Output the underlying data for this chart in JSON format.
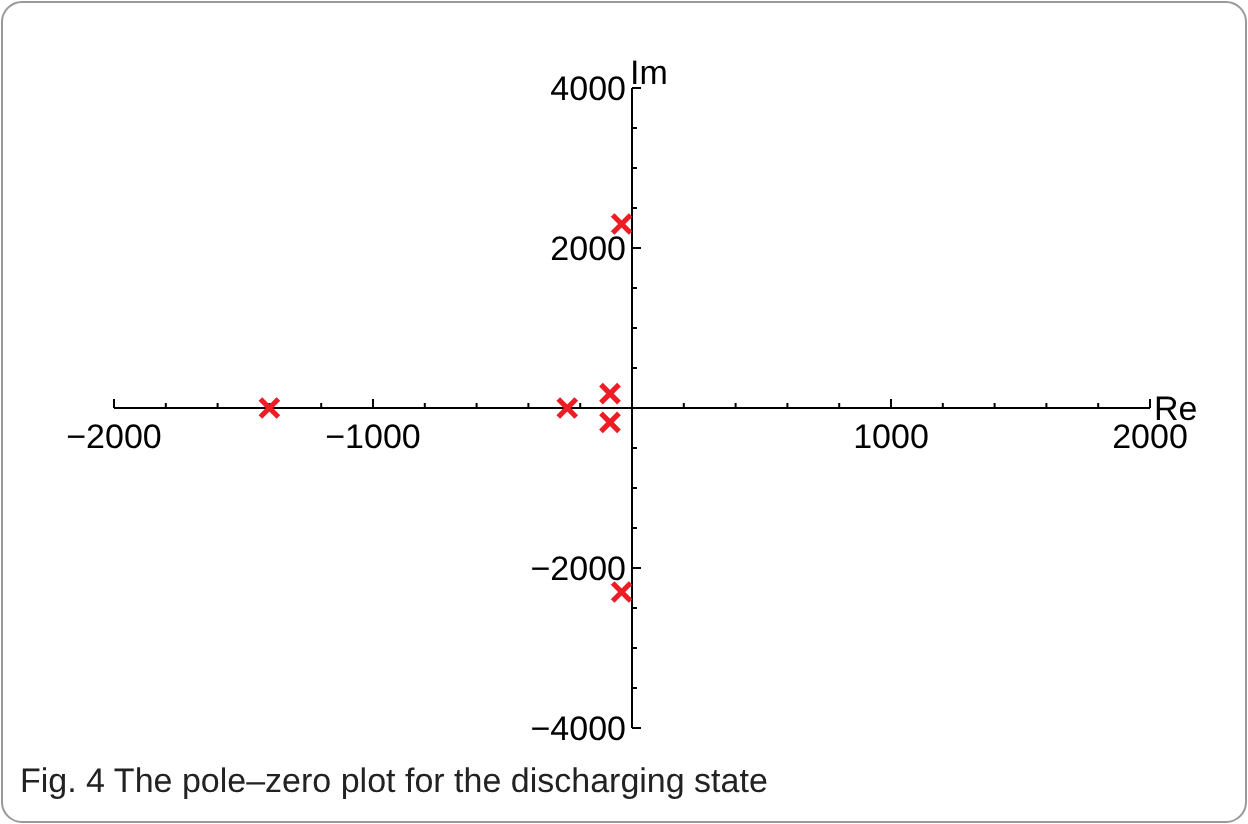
{
  "chart_data": {
    "type": "scatter",
    "title": "Fig. 4 The pole–zero plot for the discharging state",
    "xlabel": "Re",
    "ylabel": "Im",
    "x": [
      -1400,
      -250,
      -85,
      -85,
      -40,
      -40
    ],
    "series": [
      {
        "color": "#ee1c25",
        "values": [
          0,
          0,
          180,
          -180,
          2300,
          -2300
        ]
      }
    ],
    "marker": "cross",
    "grid": false,
    "xlim": [
      -2000,
      2000
    ],
    "ylim": [
      -4000,
      4000
    ],
    "xticks": [
      -2000,
      {
        "value": -1800,
        "label": null
      },
      {
        "value": -1600,
        "label": null
      },
      {
        "value": -1400,
        "label": null
      },
      {
        "value": -1200,
        "label": null
      },
      -1000,
      {
        "value": -800,
        "label": null
      },
      {
        "value": -600,
        "label": null
      },
      {
        "value": -400,
        "label": null
      },
      {
        "value": -200,
        "label": null
      },
      {
        "value": 200,
        "label": null
      },
      {
        "value": 400,
        "label": null
      },
      {
        "value": 600,
        "label": null
      },
      {
        "value": 800,
        "label": null
      },
      1000,
      {
        "value": 1200,
        "label": null
      },
      {
        "value": 1400,
        "label": null
      },
      {
        "value": 1600,
        "label": null
      },
      {
        "value": 1800,
        "label": null
      },
      2000
    ],
    "yticks": [
      -4000,
      {
        "value": -3500,
        "label": null
      },
      {
        "value": -3000,
        "label": null
      },
      {
        "value": -2500,
        "label": null
      },
      -2000,
      {
        "value": -1500,
        "label": null
      },
      {
        "value": -1000,
        "label": null
      },
      {
        "value": -500,
        "label": null
      },
      {
        "value": 500,
        "label": null
      },
      {
        "value": 1000,
        "label": null
      },
      {
        "value": 1500,
        "label": null
      },
      2000,
      {
        "value": 2500,
        "label": null
      },
      {
        "value": 3000,
        "label": null
      },
      {
        "value": 3500,
        "label": null
      },
      4000
    ]
  }
}
